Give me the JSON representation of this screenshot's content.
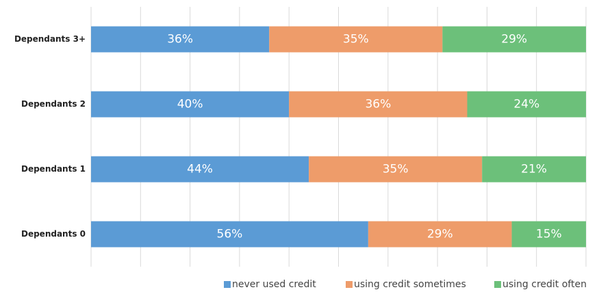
{
  "chart_data": {
    "type": "stacked-bar-horizontal",
    "categories": [
      "Dependants 3+",
      "Dependants 2",
      "Dependants 1",
      "Dependants 0"
    ],
    "series": [
      {
        "name": "never used credit",
        "color": "#5b9bd5",
        "values": [
          36,
          40,
          44,
          56
        ],
        "value_labels": [
          "36%",
          "40%",
          "44%",
          "56%"
        ]
      },
      {
        "name": "using credit sometimes",
        "color": "#ee9c6a",
        "values": [
          35,
          36,
          35,
          29
        ],
        "value_labels": [
          "35%",
          "36%",
          "35%",
          "29%"
        ]
      },
      {
        "name": "using credit often",
        "color": "#6cc07a",
        "values": [
          29,
          24,
          21,
          15
        ],
        "value_labels": [
          "29%",
          "24%",
          "21%",
          "15%"
        ]
      }
    ],
    "xlim": [
      0,
      100
    ],
    "xticks": [
      0,
      10,
      20,
      30,
      40,
      50,
      60,
      70,
      80,
      90,
      100
    ],
    "grid": true,
    "legend": "bottom"
  }
}
